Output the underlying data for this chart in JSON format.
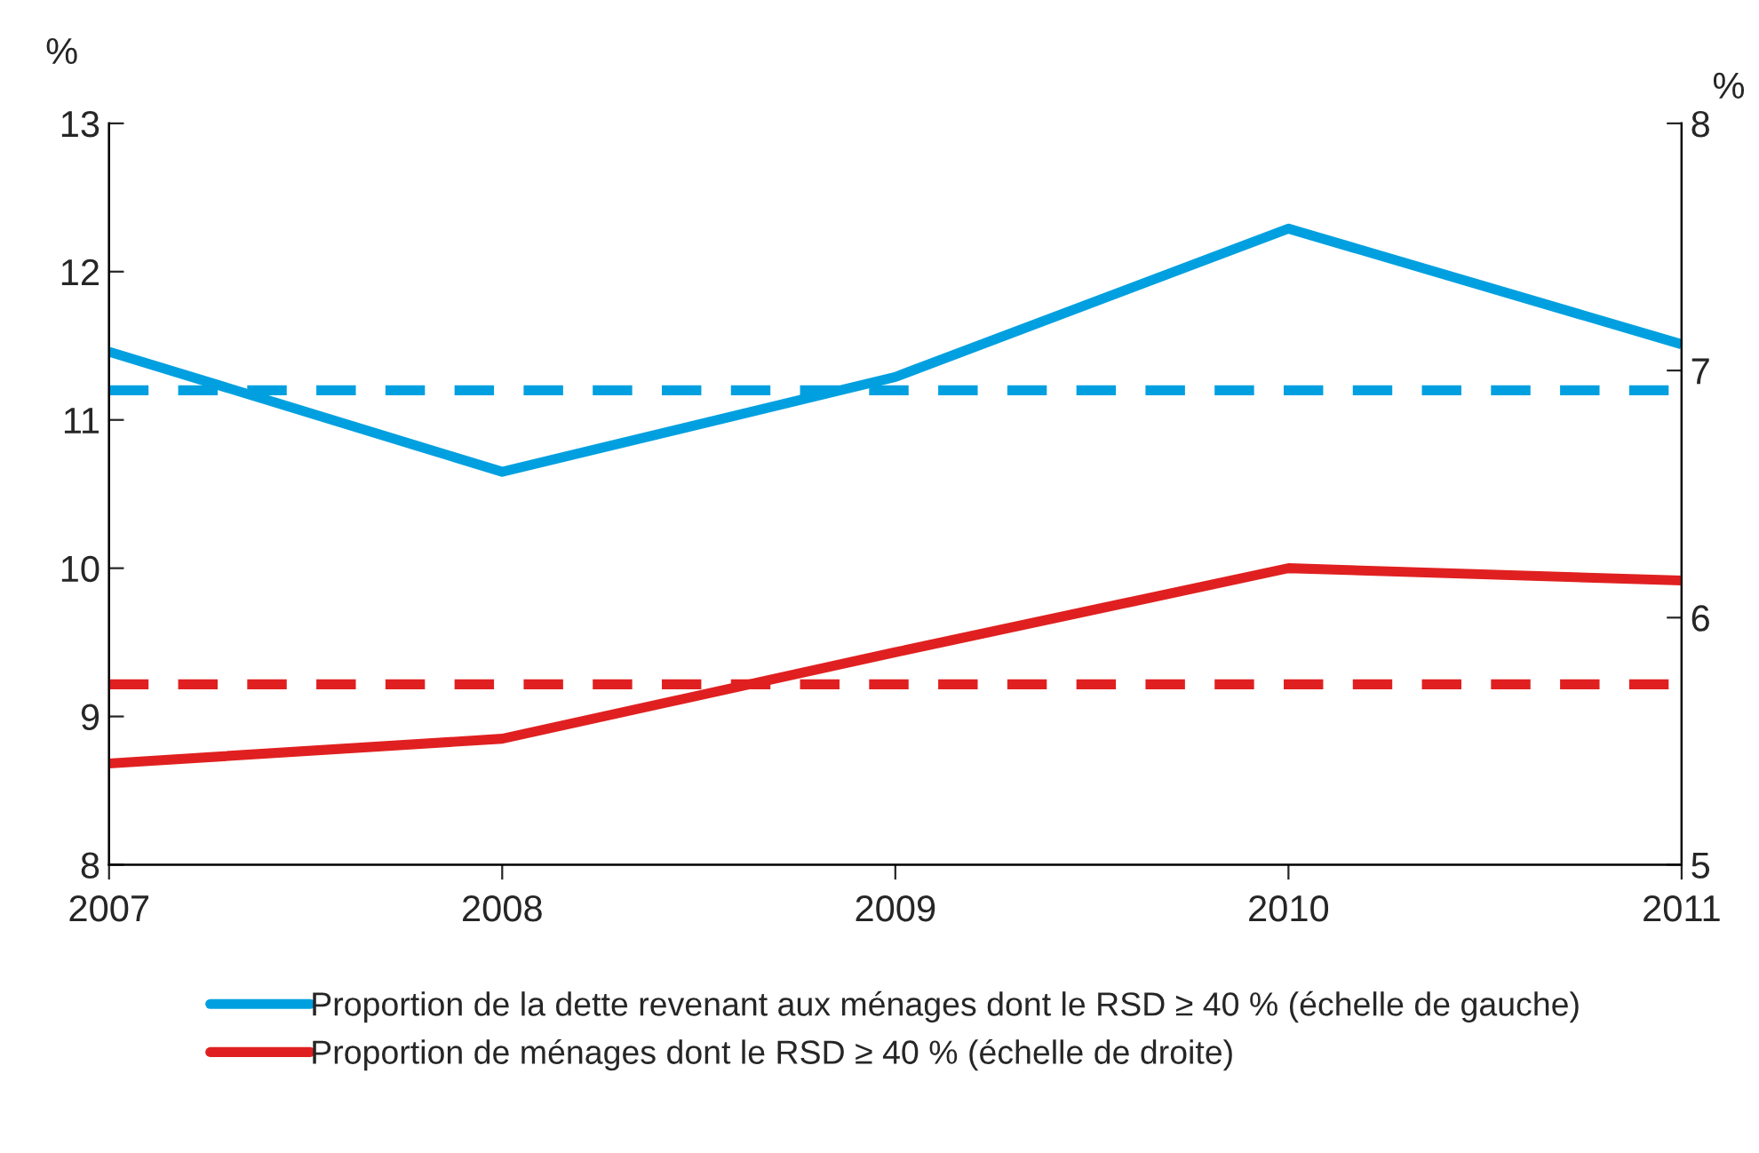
{
  "chart_data": {
    "type": "line",
    "x": [
      2007,
      2008,
      2009,
      2010,
      2011
    ],
    "xlim": [
      2007,
      2011
    ],
    "xticks": [
      2007,
      2008,
      2009,
      2010,
      2011
    ],
    "ylabel": "%",
    "y2label": "%",
    "ylim": [
      8,
      13
    ],
    "yticks": [
      8,
      9,
      10,
      11,
      12,
      13
    ],
    "y2lim": [
      5,
      8
    ],
    "y2ticks": [
      5,
      6,
      7,
      8
    ],
    "series": [
      {
        "name": "Proportion de la dette revenant aux ménages dont le RSD ≥ 40 % (échelle de gauche)",
        "color": "#00a0e0",
        "values": [
          11.46,
          10.65,
          11.29,
          12.29,
          11.51
        ]
      },
      {
        "name": "Proportion de ménages dont le RSD ≥ 40 % (échelle de droite)",
        "color": "#e02020",
        "axis": "y2",
        "values": [
          5.41,
          5.51,
          5.86,
          6.2,
          6.15
        ]
      }
    ],
    "ref_lines": [
      {
        "axis": "y",
        "value": 11.2,
        "color": "#00a0e0",
        "line_style": "dashed"
      },
      {
        "axis": "y2",
        "value": 5.73,
        "color": "#e02020",
        "line_style": "dashed"
      }
    ],
    "grid": false,
    "legend": "bottom",
    "line_style": "solid",
    "marker": "none"
  }
}
